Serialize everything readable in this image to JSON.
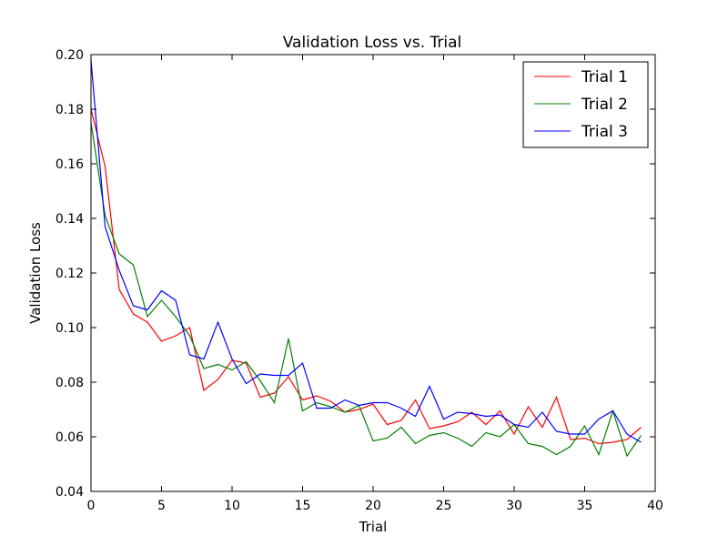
{
  "chart_data": {
    "type": "line",
    "title": "Validation Loss vs. Trial",
    "xlabel": "Trial",
    "ylabel": "Validation Loss",
    "xlim": [
      0,
      40
    ],
    "ylim": [
      0.04,
      0.2
    ],
    "x_ticks": [
      0,
      5,
      10,
      15,
      20,
      25,
      30,
      35,
      40
    ],
    "y_ticks": [
      0.04,
      0.06,
      0.08,
      0.1,
      0.12,
      0.14,
      0.16,
      0.18,
      0.2
    ],
    "x_tick_labels": [
      "0",
      "5",
      "10",
      "15",
      "20",
      "25",
      "30",
      "35",
      "40"
    ],
    "y_tick_labels": [
      "0.04",
      "0.06",
      "0.08",
      "0.10",
      "0.12",
      "0.14",
      "0.16",
      "0.18",
      "0.20"
    ],
    "grid": false,
    "legend_position": "top-right",
    "series": [
      {
        "name": "Trial 1",
        "color": "#ff0000",
        "x": [
          0,
          1,
          2,
          3,
          4,
          5,
          6,
          7,
          8,
          9,
          10,
          11,
          12,
          13,
          14,
          15,
          16,
          17,
          18,
          19,
          20,
          21,
          22,
          23,
          24,
          25,
          26,
          27,
          28,
          29,
          30,
          31,
          32,
          33,
          34,
          35,
          36,
          37,
          38,
          39
        ],
        "values": [
          0.18,
          0.159,
          0.114,
          0.105,
          0.102,
          0.095,
          0.097,
          0.1,
          0.077,
          0.081,
          0.088,
          0.087,
          0.0745,
          0.076,
          0.082,
          0.0735,
          0.075,
          0.073,
          0.069,
          0.07,
          0.072,
          0.0645,
          0.066,
          0.0735,
          0.063,
          0.064,
          0.0655,
          0.069,
          0.0645,
          0.0695,
          0.061,
          0.071,
          0.0635,
          0.0745,
          0.059,
          0.0595,
          0.0575,
          0.058,
          0.059,
          0.0635
        ]
      },
      {
        "name": "Trial 2",
        "color": "#008000",
        "x": [
          0,
          1,
          2,
          3,
          4,
          5,
          6,
          7,
          8,
          9,
          10,
          11,
          12,
          13,
          14,
          15,
          16,
          17,
          18,
          19,
          20,
          21,
          22,
          23,
          24,
          25,
          26,
          27,
          28,
          29,
          30,
          31,
          32,
          33,
          34,
          35,
          36,
          37,
          38,
          39
        ],
        "values": [
          0.175,
          0.141,
          0.127,
          0.123,
          0.104,
          0.11,
          0.104,
          0.097,
          0.085,
          0.0865,
          0.0845,
          0.0875,
          0.0805,
          0.0725,
          0.096,
          0.0695,
          0.0725,
          0.071,
          0.069,
          0.0715,
          0.0585,
          0.0595,
          0.0635,
          0.0575,
          0.0605,
          0.0615,
          0.0595,
          0.0565,
          0.0615,
          0.06,
          0.0645,
          0.0575,
          0.0565,
          0.0535,
          0.0565,
          0.064,
          0.0535,
          0.0695,
          0.053,
          0.0605
        ]
      },
      {
        "name": "Trial 3",
        "color": "#0000ff",
        "x": [
          0,
          1,
          2,
          3,
          4,
          5,
          6,
          7,
          8,
          9,
          10,
          11,
          12,
          13,
          14,
          15,
          16,
          17,
          18,
          19,
          20,
          21,
          22,
          23,
          24,
          25,
          26,
          27,
          28,
          29,
          30,
          31,
          32,
          33,
          34,
          35,
          36,
          37,
          38,
          39
        ],
        "values": [
          0.198,
          0.137,
          0.121,
          0.108,
          0.1065,
          0.1135,
          0.11,
          0.09,
          0.0885,
          0.102,
          0.0885,
          0.0795,
          0.083,
          0.0825,
          0.0825,
          0.087,
          0.0705,
          0.0705,
          0.0735,
          0.0715,
          0.0725,
          0.0725,
          0.0705,
          0.0675,
          0.0785,
          0.0665,
          0.069,
          0.0685,
          0.0675,
          0.068,
          0.0645,
          0.0635,
          0.069,
          0.062,
          0.061,
          0.061,
          0.0665,
          0.0695,
          0.061,
          0.058
        ]
      }
    ]
  }
}
